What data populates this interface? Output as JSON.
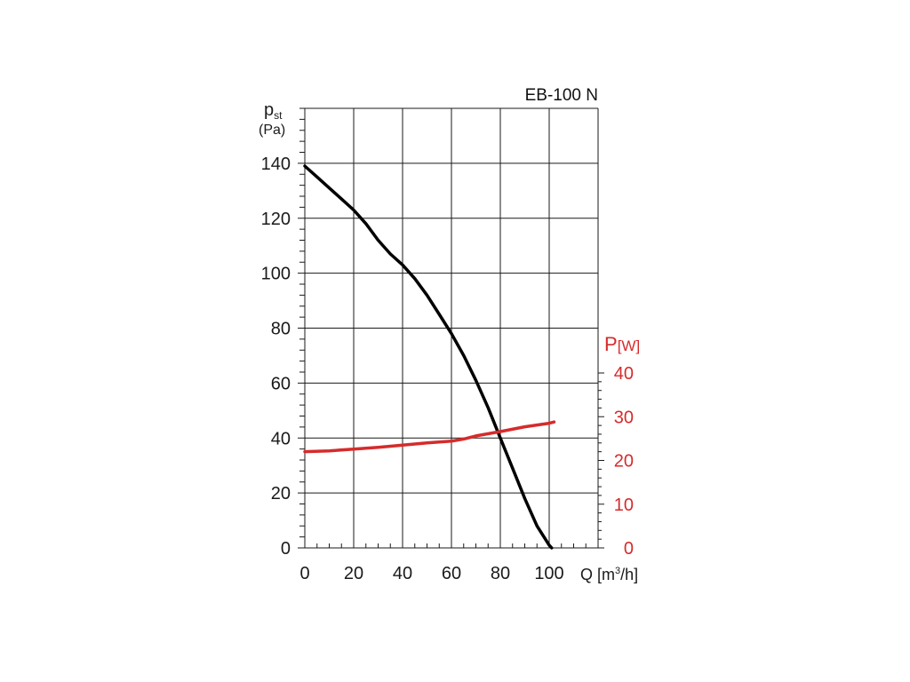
{
  "chart_data": {
    "type": "line",
    "title": "EB-100 N",
    "x_axis": {
      "label_prefix": "Q [m",
      "label_sup": "3",
      "label_suffix": "/h]",
      "range": [
        0,
        120
      ],
      "major_step": 20,
      "tick_labels": [
        "0",
        "20",
        "40",
        "60",
        "80",
        "100"
      ],
      "grid": true
    },
    "y_axis_left": {
      "label_main": "p",
      "label_sub": "st",
      "unit": "(Pa)",
      "range": [
        0,
        160
      ],
      "major_step": 20,
      "tick_labels": [
        "0",
        "20",
        "40",
        "60",
        "80",
        "100",
        "120",
        "140"
      ],
      "grid": true
    },
    "y_axis_right": {
      "label_main": "P",
      "label_unit": "[W]",
      "range": [
        0,
        40
      ],
      "tick_labels": [
        "0",
        "10",
        "20",
        "30",
        "40"
      ],
      "color": "#d62b2b"
    },
    "series": [
      {
        "axis": "left",
        "color": "#000000",
        "x": [
          0,
          5,
          10,
          15,
          20,
          25,
          30,
          35,
          40,
          45,
          50,
          55,
          60,
          65,
          70,
          75,
          80,
          85,
          90,
          95,
          100,
          101
        ],
        "y": [
          139,
          135,
          131,
          127,
          123,
          118,
          112,
          107,
          103,
          98,
          92,
          85,
          78,
          70,
          61,
          51,
          40,
          29,
          18,
          8,
          1,
          0
        ]
      },
      {
        "axis": "right",
        "color": "#d62b2b",
        "x": [
          0,
          10,
          20,
          30,
          40,
          50,
          60,
          65,
          70,
          80,
          90,
          100,
          102
        ],
        "y": [
          22,
          22.2,
          22.6,
          23,
          23.5,
          24,
          24.4,
          24.9,
          25.6,
          26.6,
          27.7,
          28.5,
          28.8
        ]
      }
    ],
    "colors": {
      "left_axis": "#1a1a1a",
      "right_axis": "#d62b2b",
      "grid": "#1a1a1a"
    }
  }
}
